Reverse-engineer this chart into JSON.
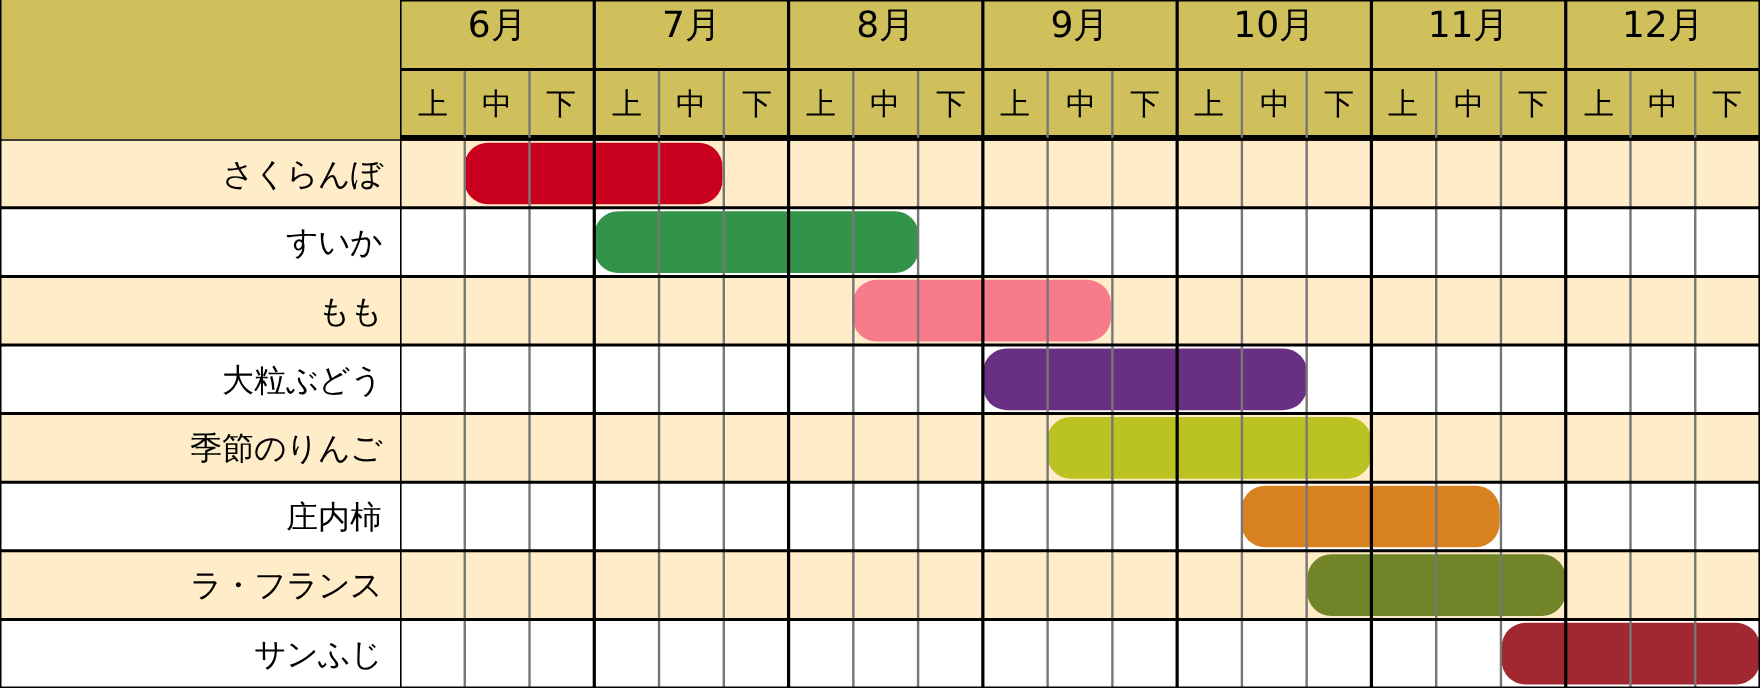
{
  "chart_data": {
    "type": "bar",
    "orientation": "horizontal",
    "categories": [
      "さくらんぼ",
      "すいか",
      "もも",
      "大粒ぶどう",
      "季節のりんご",
      "庄内柿",
      "ラ・フランス",
      "サンふじ"
    ],
    "base": [
      5.83,
      6.5,
      7.83,
      8.5,
      8.83,
      9.83,
      10.17,
      11.17
    ],
    "values": [
      1.33,
      1.67,
      1.33,
      1.67,
      1.67,
      1.33,
      1.33,
      1.33
    ],
    "colors": [
      "#c8001e",
      "#339449",
      "#f87b8c",
      "#692f82",
      "#bbc322",
      "#d8811f",
      "#718428",
      "#a12830"
    ],
    "xlim": [
      5.5,
      12.5
    ],
    "xticks": [
      {
        "value": 6,
        "label": "6月"
      },
      {
        "value": 7,
        "label": "7月"
      },
      {
        "value": 8,
        "label": "8月"
      },
      {
        "value": 9,
        "label": "9月"
      },
      {
        "value": 10,
        "label": "10月"
      },
      {
        "value": 11,
        "label": "11月"
      },
      {
        "value": 12,
        "label": "12月"
      }
    ],
    "annotations": [
      "上",
      "中",
      "下",
      "上",
      "中",
      "下",
      "上",
      "中",
      "下",
      "上",
      "中",
      "下",
      "上",
      "中",
      "下",
      "上",
      "中",
      "下",
      "上",
      "中",
      "下"
    ],
    "grid": true,
    "legend": false
  }
}
